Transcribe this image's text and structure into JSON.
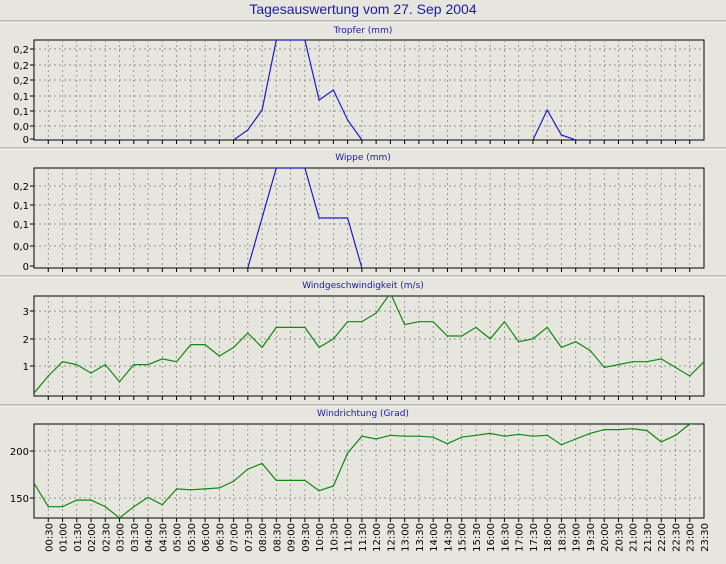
{
  "page_title": "Tagesauswertung vom 27. Sep 2004",
  "time_labels": [
    "00:30",
    "01:00",
    "01:30",
    "02:00",
    "02:30",
    "03:00",
    "03:30",
    "04:00",
    "04:30",
    "05:00",
    "05:30",
    "06:00",
    "06:30",
    "07:00",
    "07:30",
    "08:00",
    "08:30",
    "09:00",
    "09:30",
    "10:00",
    "10:30",
    "11:00",
    "11:30",
    "12:00",
    "12:30",
    "13:00",
    "13:30",
    "14:00",
    "14:30",
    "15:00",
    "15:30",
    "16:00",
    "16:30",
    "17:00",
    "17:30",
    "18:00",
    "18:30",
    "19:00",
    "19:30",
    "20:00",
    "20:30",
    "21:00",
    "21:30",
    "22:00",
    "22:30",
    "23:00",
    "23:30"
  ],
  "chart_data": [
    {
      "type": "line",
      "title": "Tropfer (mm)",
      "color": "#1c1ccc",
      "yticks": [
        "0,2",
        "0,2",
        "0,2",
        "0,1",
        "0,1",
        "0,0",
        "0"
      ],
      "ylim": [
        0,
        0.2
      ],
      "x": [
        "00:00",
        "07:00",
        "07:30",
        "08:00",
        "08:30",
        "09:30",
        "10:00",
        "10:30",
        "11:00",
        "11:30",
        "12:00",
        "17:30",
        "18:00",
        "18:30",
        "19:00",
        "23:30"
      ],
      "values": [
        0,
        0,
        0.02,
        0.06,
        0.2,
        0.2,
        0.08,
        0.1,
        0.04,
        0,
        0,
        0,
        0.06,
        0.01,
        0,
        0
      ]
    },
    {
      "type": "line",
      "title": "Wippe (mm)",
      "color": "#1c1ccc",
      "yticks": [
        "0,2",
        "0,1",
        "0,1",
        "0,0",
        "0"
      ],
      "ylim": [
        0,
        0.2
      ],
      "x": [
        "07:30",
        "08:30",
        "09:00",
        "09:30",
        "10:00",
        "11:00",
        "11:30"
      ],
      "values": [
        0,
        0.2,
        0.2,
        0.2,
        0.1,
        0.1,
        0
      ]
    },
    {
      "type": "line",
      "title": "Windgeschwindigkeit (m/s)",
      "color": "#118811",
      "yticks": [
        "3",
        "2",
        "1"
      ],
      "ylim": [
        0,
        3.5
      ],
      "x": [
        "00:00",
        "00:30",
        "01:00",
        "01:30",
        "02:00",
        "02:30",
        "03:00",
        "03:30",
        "04:00",
        "04:30",
        "05:00",
        "05:30",
        "06:00",
        "06:30",
        "07:00",
        "07:30",
        "08:00",
        "08:30",
        "09:00",
        "09:30",
        "10:00",
        "10:30",
        "11:00",
        "11:30",
        "12:00",
        "12:30",
        "13:00",
        "13:30",
        "14:00",
        "14:30",
        "15:00",
        "15:30",
        "16:00",
        "16:30",
        "17:00",
        "17:30",
        "18:00",
        "18:30",
        "19:00",
        "19:30",
        "20:00",
        "20:30",
        "21:00",
        "21:30",
        "22:00",
        "22:30",
        "23:00",
        "23:30"
      ],
      "values": [
        0.1,
        0.7,
        1.2,
        1.1,
        0.8,
        1.1,
        0.5,
        1.1,
        1.1,
        1.3,
        1.2,
        1.8,
        1.8,
        1.4,
        1.7,
        2.2,
        1.7,
        2.4,
        2.4,
        2.4,
        1.7,
        2.0,
        2.6,
        2.6,
        2.9,
        3.6,
        2.5,
        2.6,
        2.6,
        2.1,
        2.1,
        2.4,
        2.0,
        2.6,
        1.9,
        2.0,
        2.4,
        1.7,
        1.9,
        1.6,
        1.0,
        1.1,
        1.2,
        1.2,
        1.3,
        1.0,
        0.7,
        1.2
      ]
    },
    {
      "type": "line",
      "title": "Windrichtung (Grad)",
      "color": "#118811",
      "yticks": [
        "200",
        "150"
      ],
      "ylim": [
        128,
        228
      ],
      "x": [
        "00:00",
        "00:30",
        "01:00",
        "01:30",
        "02:00",
        "02:30",
        "03:00",
        "03:30",
        "04:00",
        "04:30",
        "05:00",
        "05:30",
        "06:00",
        "06:30",
        "07:00",
        "07:30",
        "08:00",
        "08:30",
        "09:00",
        "09:30",
        "10:00",
        "10:30",
        "11:00",
        "11:30",
        "12:00",
        "12:30",
        "13:00",
        "13:30",
        "14:00",
        "14:30",
        "15:00",
        "15:30",
        "16:00",
        "16:30",
        "17:00",
        "17:30",
        "18:00",
        "18:30",
        "19:00",
        "19:30",
        "20:00",
        "20:30",
        "21:00",
        "21:30",
        "22:00",
        "22:30",
        "23:00",
        "23:30"
      ],
      "values": [
        165,
        140,
        140,
        147,
        147,
        140,
        128,
        140,
        150,
        142,
        159,
        158,
        159,
        160,
        167,
        180,
        186,
        168,
        168,
        168,
        157,
        162,
        197,
        215,
        212,
        216,
        215,
        215,
        214,
        207,
        214,
        216,
        218,
        215,
        217,
        215,
        216,
        206,
        212,
        218,
        222,
        222,
        223,
        221,
        209,
        216,
        228,
        230
      ]
    }
  ]
}
